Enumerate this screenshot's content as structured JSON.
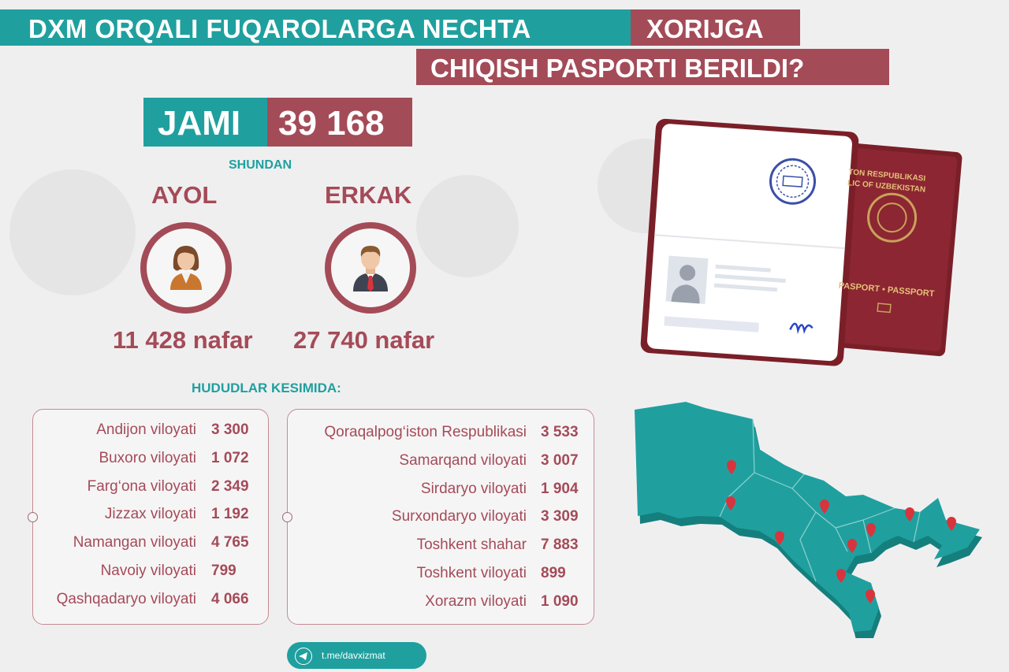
{
  "header": {
    "line1_teal": "DXM ORQALI FUQAROLARGA NECHTA",
    "line1_maroon": "XORIJGA",
    "line2_maroon": "CHIQISH PASPORTI BERILDI?"
  },
  "total": {
    "label": "JAMI",
    "value": "39 168"
  },
  "subheading": "SHUNDAN",
  "gender": {
    "female": {
      "label": "AYOL",
      "count": "11 428 nafar",
      "icon": "woman-icon"
    },
    "male": {
      "label": "ERKAK",
      "count": "27 740 nafar",
      "icon": "man-icon"
    }
  },
  "regions_heading": "HUDUDLAR KESIMIDA:",
  "regions_left": [
    {
      "name": "Andijon viloyati",
      "value": "3 300"
    },
    {
      "name": "Buxoro viloyati",
      "value": "1 072"
    },
    {
      "name": "Farg‘ona viloyati",
      "value": "2 349"
    },
    {
      "name": "Jizzax viloyati",
      "value": "1 192"
    },
    {
      "name": "Namangan viloyati",
      "value": "4 765"
    },
    {
      "name": "Navoiy viloyati",
      "value": "799"
    },
    {
      "name": "Qashqadaryo viloyati",
      "value": "4 066"
    }
  ],
  "regions_right": [
    {
      "name": "Qoraqalpog‘iston Respublikasi",
      "value": "3 533"
    },
    {
      "name": "Samarqand viloyati",
      "value": "3 007"
    },
    {
      "name": "Sirdaryo viloyati",
      "value": "1 904"
    },
    {
      "name": "Surxondaryo viloyati",
      "value": "3 309"
    },
    {
      "name": "Toshkent shahar",
      "value": "7 883"
    },
    {
      "name": "Toshkent viloyati",
      "value": "899"
    },
    {
      "name": "Xorazm viloyati",
      "value": "1 090"
    }
  ],
  "passport": {
    "cover_line1": "TON RESPUBLIKASI",
    "cover_line2": "LIC OF UZBEKISTAN",
    "cover_bottom": "PASPORT • PASSPORT"
  },
  "footer": {
    "telegram": "t.me/davxizmat",
    "icon": "telegram-icon"
  },
  "colors": {
    "teal": "#1fa09f",
    "maroon": "#a44b58"
  }
}
